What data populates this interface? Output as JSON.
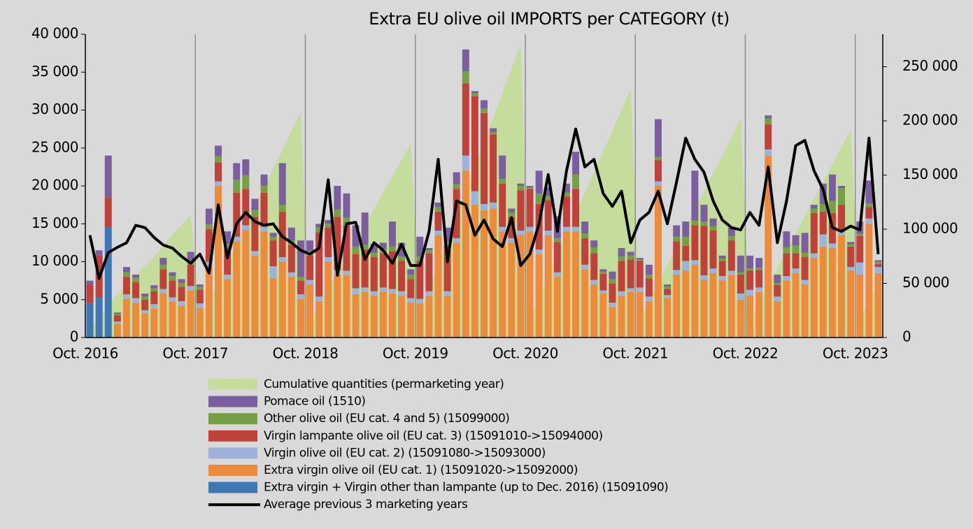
{
  "chart_data": {
    "type": "bar",
    "stacked": true,
    "title": "Extra EU olive oil IMPORTS per CATEGORY (t)",
    "background": "#d9d9d9",
    "categories": [
      "Oct. 2016",
      null,
      null,
      null,
      null,
      null,
      null,
      null,
      null,
      null,
      null,
      null,
      "Oct. 2017",
      null,
      null,
      null,
      null,
      null,
      null,
      null,
      null,
      null,
      null,
      null,
      "Oct. 2018",
      null,
      null,
      null,
      null,
      null,
      null,
      null,
      null,
      null,
      null,
      null,
      "Oct. 2019",
      null,
      null,
      null,
      null,
      null,
      null,
      null,
      null,
      null,
      null,
      null,
      "Oct. 2020",
      null,
      null,
      null,
      null,
      null,
      null,
      null,
      null,
      null,
      null,
      null,
      "Oct. 2021",
      null,
      null,
      null,
      null,
      null,
      null,
      null,
      null,
      null,
      null,
      null,
      "Oct. 2022",
      null,
      null,
      null,
      null,
      null,
      null,
      null,
      null,
      null,
      null,
      null,
      "Oct. 2023",
      null,
      null
    ],
    "ylim": [
      0,
      40000
    ],
    "yticks": [
      0,
      {
        "value": 5000,
        "label": "5 000"
      },
      {
        "value": 10000,
        "label": "10 000"
      },
      {
        "value": 15000,
        "label": "15 000"
      },
      {
        "value": 20000,
        "label": "20 000"
      },
      {
        "value": 25000,
        "label": "25 000"
      },
      {
        "value": 30000,
        "label": "30 000"
      },
      {
        "value": 35000,
        "label": "35 000"
      },
      {
        "value": 40000,
        "label": "40 000"
      }
    ],
    "y2lim": [
      0,
      280000
    ],
    "y2ticks": [
      0,
      {
        "value": 50000,
        "label": "50 000"
      },
      {
        "value": 100000,
        "label": "100 000"
      },
      {
        "value": 150000,
        "label": "150 000"
      },
      {
        "value": 200000,
        "label": "200 000"
      },
      {
        "value": 250000,
        "label": "250 000"
      }
    ],
    "series": [
      {
        "name": "Cumulative quantities (permarketing year)",
        "kind": "area",
        "axis": "y2",
        "color": "#c4dd9c",
        "values": [
          9000,
          19000,
          30000,
          40000,
          50000,
          58000,
          66000,
          75000,
          85000,
          95000,
          104000,
          113000,
          17000,
          34000,
          52000,
          69000,
          87000,
          104000,
          121000,
          139000,
          156000,
          173000,
          191000,
          208000,
          15000,
          30000,
          45000,
          60000,
          75000,
          90000,
          104000,
          119000,
          134000,
          149000,
          164000,
          179000,
          23000,
          45000,
          68000,
          90000,
          113000,
          136000,
          158000,
          181000,
          203000,
          226000,
          248000,
          271000,
          19000,
          38000,
          57000,
          76000,
          95000,
          115000,
          134000,
          153000,
          172000,
          191000,
          210000,
          229000,
          17000,
          34000,
          51000,
          67000,
          84000,
          101000,
          118000,
          135000,
          152000,
          168000,
          185000,
          202000,
          16000,
          32000,
          48000,
          64000,
          80000,
          96000,
          112000,
          128000,
          144000,
          160000,
          176000,
          192000,
          15000,
          36000,
          46000
        ]
      },
      {
        "name": "Pomace oil  (1510)",
        "kind": "bar",
        "color": "#7b5e9e",
        "values": [
          500,
          700,
          5500,
          200,
          700,
          400,
          400,
          400,
          900,
          500,
          500,
          1100,
          300,
          2100,
          1400,
          1600,
          2200,
          2100,
          1500,
          1500,
          500,
          5500,
          1700,
          4800,
          1400,
          500,
          500,
          3100,
          3200,
          2800,
          4300,
          1100,
          800,
          3300,
          1800,
          700,
          2600,
          300,
          600,
          1800,
          1600,
          2900,
          300,
          1100,
          500,
          3100,
          500,
          300,
          200,
          3000,
          1100,
          2900,
          1200,
          3000,
          1600,
          900,
          300,
          1000,
          1100,
          500,
          200,
          1300,
          5000,
          300,
          1500,
          2000,
          6600,
          2200,
          1000,
          400,
          1100,
          2200,
          1700,
          1300,
          400,
          1100,
          2100,
          1400,
          2600,
          500,
          2700,
          3500,
          300,
          300,
          1600,
          3000,
          200
        ]
      },
      {
        "name": "Other olive oil (EU cat. 4 and 5) (15099000)",
        "kind": "bar",
        "color": "#77a046",
        "values": [
          null,
          null,
          null,
          200,
          600,
          600,
          400,
          400,
          600,
          600,
          500,
          600,
          400,
          600,
          800,
          600,
          1700,
          1800,
          900,
          900,
          500,
          900,
          600,
          500,
          600,
          600,
          500,
          1000,
          1000,
          1000,
          600,
          600,
          600,
          600,
          600,
          600,
          600,
          400,
          600,
          600,
          600,
          1600,
          400,
          600,
          300,
          600,
          600,
          600,
          200,
          1400,
          600,
          500,
          500,
          1900,
          600,
          800,
          300,
          600,
          600,
          500,
          200,
          500,
          400,
          300,
          600,
          1200,
          600,
          600,
          600,
          300,
          600,
          300,
          300,
          300,
          800,
          300,
          800,
          1000,
          600,
          600,
          1000,
          1600,
          2200,
          300,
          300,
          500,
          300
        ]
      },
      {
        "name": "Virgin lampante olive oil (EU cat. 3) (15091010->15094000)",
        "kind": "bar",
        "color": "#c0403a",
        "values": [
          2500,
          5500,
          4000,
          800,
          2300,
          2100,
          1400,
          1700,
          2600,
          2200,
          1900,
          2800,
          1800,
          4300,
          2500,
          3500,
          5800,
          4800,
          4500,
          4500,
          3400,
          6000,
          3600,
          1800,
          3200,
          8500,
          3900,
          7000,
          6000,
          4500,
          5000,
          4500,
          4500,
          5000,
          4000,
          2500,
          5000,
          5000,
          2500,
          6000,
          6500,
          9500,
          12500,
          12000,
          9000,
          5700,
          2800,
          5300,
          5000,
          6000,
          4000,
          4000,
          4000,
          5000,
          3500,
          3500,
          2200,
          2500,
          4000,
          3800,
          3500,
          2400,
          2800,
          800,
          3800,
          2000,
          4600,
          6500,
          5000,
          2000,
          4000,
          2500,
          2500,
          2300,
          3300,
          1500,
          3000,
          2000,
          3000,
          5300,
          3000,
          4000,
          3500,
          2700,
          3500,
          1500,
          400
        ]
      },
      {
        "name": "Virgin olive oil (EU cat. 2) (15091080->15093000)",
        "kind": "bar",
        "color": "#9db3dc",
        "values": [
          null,
          null,
          null,
          300,
          600,
          600,
          400,
          600,
          600,
          600,
          600,
          600,
          600,
          600,
          600,
          600,
          600,
          600,
          600,
          600,
          1600,
          600,
          600,
          600,
          600,
          600,
          600,
          600,
          600,
          800,
          600,
          600,
          600,
          600,
          600,
          600,
          600,
          600,
          600,
          600,
          600,
          2000,
          1800,
          800,
          800,
          600,
          600,
          600,
          600,
          600,
          600,
          600,
          600,
          600,
          600,
          600,
          400,
          600,
          600,
          500,
          600,
          600,
          600,
          400,
          600,
          1300,
          600,
          600,
          600,
          600,
          600,
          800,
          800,
          600,
          800,
          600,
          600,
          600,
          600,
          600,
          1600,
          600,
          500,
          500,
          1600,
          700,
          800
        ]
      },
      {
        "name": "Extra virgin olive oil (EU cat. 1) (15091020->15092000)",
        "kind": "bar",
        "color": "#ee8a3c",
        "values": [
          null,
          null,
          null,
          1800,
          5100,
          4600,
          3200,
          3800,
          5800,
          4700,
          4200,
          6200,
          3900,
          9400,
          20000,
          7700,
          12700,
          14200,
          10800,
          14000,
          7800,
          10000,
          8000,
          5100,
          7000,
          4800,
          10000,
          8300,
          8200,
          5700,
          6000,
          5500,
          6000,
          5800,
          5500,
          4600,
          4500,
          5500,
          13500,
          5500,
          12500,
          22000,
          17500,
          16800,
          17000,
          14000,
          12500,
          13500,
          14000,
          11000,
          13500,
          8000,
          14000,
          14000,
          9000,
          7000,
          5800,
          4000,
          5500,
          6000,
          6000,
          4800,
          20000,
          5200,
          8300,
          8800,
          9600,
          7600,
          8500,
          7500,
          8200,
          5000,
          5500,
          6000,
          24000,
          4800,
          7500,
          8500,
          7000,
          10500,
          12000,
          11800,
          13500,
          8800,
          8300,
          15000,
          8500
        ]
      },
      {
        "name": "Extra virgin + Virgin other than lampante (up to Dec. 2016) (15091090)",
        "kind": "bar",
        "color": "#3d78b5",
        "values": [
          4500,
          5300,
          14500,
          null,
          null,
          null,
          null,
          null,
          null,
          null,
          null,
          null,
          null,
          null,
          null,
          null,
          null,
          null,
          null,
          null,
          null,
          null,
          null,
          null,
          null,
          null,
          null,
          null,
          null,
          null,
          null,
          null,
          null,
          null,
          null,
          null,
          null,
          null,
          null,
          null,
          null,
          null,
          null,
          null,
          null,
          null,
          null,
          null,
          null,
          null,
          null,
          null,
          null,
          null,
          null,
          null,
          null,
          null,
          null,
          null,
          null,
          null,
          null,
          null,
          null,
          null,
          null,
          null,
          null,
          null,
          null,
          null,
          null,
          null,
          null,
          null,
          null,
          null,
          null,
          null,
          null,
          null,
          null,
          null,
          null,
          null,
          null
        ]
      },
      {
        "name": "Average previous 3 marketing years",
        "kind": "line",
        "color": "#000000",
        "values": [
          13500,
          7800,
          11200,
          11900,
          12500,
          14800,
          14500,
          13200,
          12200,
          11800,
          10700,
          9800,
          11000,
          8500,
          17500,
          10500,
          15000,
          16500,
          15300,
          14800,
          15000,
          13300,
          12500,
          11500,
          11000,
          11800,
          20800,
          8200,
          15000,
          15200,
          10300,
          12500,
          11500,
          9800,
          12300,
          9500,
          9500,
          14000,
          23500,
          10000,
          18000,
          17500,
          13500,
          15500,
          13000,
          12000,
          15800,
          9500,
          11000,
          15000,
          21500,
          14000,
          22000,
          27500,
          22500,
          23500,
          19000,
          17300,
          19300,
          12500,
          15500,
          16500,
          19300,
          15000,
          20500,
          26300,
          23500,
          21800,
          18000,
          15500,
          14500,
          14200,
          16500,
          14800,
          22500,
          12500,
          18000,
          25300,
          26000,
          22000,
          19500,
          14500,
          14000,
          14700,
          14200,
          26300,
          11000
        ]
      }
    ]
  }
}
